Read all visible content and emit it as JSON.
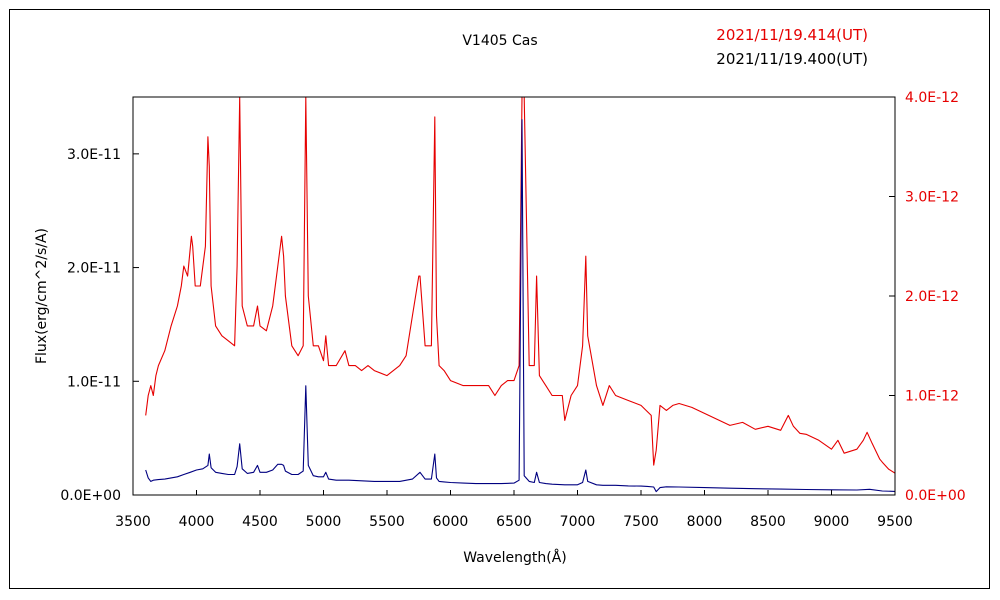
{
  "chart_data": {
    "type": "line",
    "title": "V1405 Cas",
    "legend": [
      {
        "label": "2021/11/19.414(UT)",
        "color": "#e60000"
      },
      {
        "label": "2021/11/19.400(UT)",
        "color": "#000000"
      }
    ],
    "xlabel": "Wavelength(Å)",
    "ylabel": "Flux(erg/cm^2/s/A)",
    "xlim": [
      3500,
      9500
    ],
    "xticks": [
      "3500",
      "4000",
      "4500",
      "5000",
      "5500",
      "6000",
      "6500",
      "7000",
      "7500",
      "8000",
      "8500",
      "9000",
      "9500"
    ],
    "y_left": {
      "lim": [
        0,
        3.5e-11
      ],
      "ticks": [
        0,
        1e-11,
        2e-11,
        3e-11
      ],
      "tick_labels": [
        "0.0E+00",
        "1.0E-11",
        "2.0E-11",
        "3.0E-11"
      ],
      "color": "#000000"
    },
    "y_right": {
      "lim": [
        0,
        4e-12
      ],
      "ticks": [
        0,
        1e-12,
        2e-12,
        3e-12,
        4e-12
      ],
      "tick_labels": [
        "0.0E+00",
        "1.0E-12",
        "2.0E-12",
        "3.0E-12",
        "4.0E-12"
      ],
      "color": "#e60000"
    },
    "series": [
      {
        "axis": "right",
        "color": "#e60000",
        "x": [
          3600,
          3620,
          3640,
          3660,
          3680,
          3700,
          3750,
          3800,
          3850,
          3880,
          3900,
          3930,
          3960,
          3970,
          3990,
          4030,
          4070,
          4090,
          4101,
          4115,
          4150,
          4200,
          4250,
          4300,
          4320,
          4340,
          4360,
          4400,
          4450,
          4480,
          4500,
          4550,
          4600,
          4640,
          4670,
          4686,
          4700,
          4750,
          4800,
          4840,
          4861,
          4880,
          4920,
          4960,
          5000,
          5018,
          5040,
          5100,
          5169,
          5200,
          5250,
          5300,
          5350,
          5400,
          5500,
          5600,
          5650,
          5700,
          5750,
          5760,
          5800,
          5850,
          5876,
          5890,
          5910,
          5950,
          6000,
          6100,
          6200,
          6300,
          6350,
          6400,
          6450,
          6500,
          6540,
          6563,
          6580,
          6620,
          6660,
          6678,
          6700,
          6750,
          6800,
          6880,
          6900,
          6950,
          7000,
          7040,
          7065,
          7080,
          7150,
          7200,
          7250,
          7300,
          7400,
          7500,
          7580,
          7600,
          7620,
          7650,
          7700,
          7750,
          7800,
          7900,
          8000,
          8100,
          8200,
          8300,
          8400,
          8500,
          8600,
          8660,
          8700,
          8750,
          8800,
          8900,
          9000,
          9050,
          9100,
          9200,
          9250,
          9280,
          9320,
          9380,
          9400,
          9450,
          9500
        ],
        "y": [
          8e-13,
          1e-12,
          1.1e-12,
          1e-12,
          1.2e-12,
          1.3e-12,
          1.45e-12,
          1.7e-12,
          1.9e-12,
          2.1e-12,
          2.3e-12,
          2.2e-12,
          2.6e-12,
          2.5e-12,
          2.1e-12,
          2.1e-12,
          2.5e-12,
          3.6e-12,
          3.3e-12,
          2.1e-12,
          1.7e-12,
          1.6e-12,
          1.55e-12,
          1.5e-12,
          2.3e-12,
          4e-12,
          1.9e-12,
          1.7e-12,
          1.7e-12,
          1.9e-12,
          1.7e-12,
          1.65e-12,
          1.9e-12,
          2.3e-12,
          2.6e-12,
          2.4e-12,
          2e-12,
          1.5e-12,
          1.4e-12,
          1.5e-12,
          4e-12,
          2e-12,
          1.5e-12,
          1.5e-12,
          1.35e-12,
          1.6e-12,
          1.3e-12,
          1.3e-12,
          1.45e-12,
          1.3e-12,
          1.3e-12,
          1.25e-12,
          1.3e-12,
          1.25e-12,
          1.2e-12,
          1.3e-12,
          1.4e-12,
          1.8e-12,
          2.2e-12,
          2.2e-12,
          1.5e-12,
          1.5e-12,
          3.8e-12,
          1.8e-12,
          1.3e-12,
          1.25e-12,
          1.15e-12,
          1.1e-12,
          1.1e-12,
          1.1e-12,
          1e-12,
          1.1e-12,
          1.15e-12,
          1.15e-12,
          1.3e-12,
          4e-12,
          4e-12,
          1.3e-12,
          1.3e-12,
          2.2e-12,
          1.2e-12,
          1.1e-12,
          1e-12,
          1e-12,
          7.5e-13,
          1e-12,
          1.1e-12,
          1.5e-12,
          2.4e-12,
          1.6e-12,
          1.1e-12,
          9e-13,
          1.1e-12,
          1e-12,
          9.5e-13,
          9e-13,
          8e-13,
          3e-13,
          4.5e-13,
          9e-13,
          8.5e-13,
          9e-13,
          9.2e-13,
          8.8e-13,
          8.2e-13,
          7.6e-13,
          7e-13,
          7.3e-13,
          6.6e-13,
          6.9e-13,
          6.5e-13,
          8e-13,
          6.9e-13,
          6.2e-13,
          6.1e-13,
          5.5e-13,
          4.6e-13,
          5.5e-13,
          4.2e-13,
          4.6e-13,
          5.5e-13,
          6.3e-13,
          5.2e-13,
          3.6e-13,
          3.3e-13,
          2.6e-13,
          2.2e-13
        ]
      },
      {
        "axis": "left",
        "color": "#000080",
        "x": [
          3600,
          3620,
          3640,
          3660,
          3700,
          3750,
          3800,
          3850,
          3900,
          3950,
          4000,
          4050,
          4090,
          4101,
          4115,
          4150,
          4200,
          4250,
          4300,
          4320,
          4340,
          4360,
          4400,
          4450,
          4480,
          4500,
          4550,
          4600,
          4640,
          4670,
          4686,
          4700,
          4750,
          4800,
          4840,
          4861,
          4880,
          4920,
          4960,
          5000,
          5018,
          5040,
          5100,
          5200,
          5300,
          5400,
          5500,
          5600,
          5700,
          5760,
          5800,
          5850,
          5876,
          5890,
          5910,
          5950,
          6000,
          6100,
          6200,
          6300,
          6400,
          6500,
          6540,
          6563,
          6580,
          6620,
          6660,
          6678,
          6700,
          6750,
          6800,
          6900,
          7000,
          7040,
          7065,
          7080,
          7150,
          7200,
          7300,
          7400,
          7500,
          7550,
          7600,
          7620,
          7650,
          7700,
          7800,
          8000,
          8200,
          8400,
          8600,
          8800,
          9000,
          9200,
          9300,
          9400,
          9500
        ],
        "y": [
          2.2e-12,
          1.5e-12,
          1.2e-12,
          1.3e-12,
          1.35e-12,
          1.4e-12,
          1.5e-12,
          1.6e-12,
          1.8e-12,
          2e-12,
          2.2e-12,
          2.3e-12,
          2.6e-12,
          3.6e-12,
          2.4e-12,
          2e-12,
          1.9e-12,
          1.8e-12,
          1.8e-12,
          2.5e-12,
          4.5e-12,
          2.3e-12,
          1.9e-12,
          2e-12,
          2.6e-12,
          2e-12,
          2e-12,
          2.2e-12,
          2.7e-12,
          2.7e-12,
          2.6e-12,
          2.1e-12,
          1.8e-12,
          1.8e-12,
          2.1e-12,
          9.6e-12,
          2.6e-12,
          1.7e-12,
          1.6e-12,
          1.6e-12,
          2e-12,
          1.4e-12,
          1.3e-12,
          1.3e-12,
          1.25e-12,
          1.2e-12,
          1.2e-12,
          1.2e-12,
          1.4e-12,
          2e-12,
          1.4e-12,
          1.4e-12,
          3.6e-12,
          1.5e-12,
          1.2e-12,
          1.15e-12,
          1.1e-12,
          1.05e-12,
          1e-12,
          1e-12,
          1e-12,
          1.05e-12,
          1.3e-12,
          3.3e-11,
          1.7e-12,
          1.2e-12,
          1.1e-12,
          2e-12,
          1.1e-12,
          1e-12,
          9.5e-13,
          9e-13,
          9e-13,
          1.1e-12,
          2.2e-12,
          1.2e-12,
          9e-13,
          8.5e-13,
          8.5e-13,
          8e-13,
          7.8e-13,
          7.6e-13,
          7e-13,
          3e-13,
          6.5e-13,
          7.2e-13,
          7e-13,
          6.5e-13,
          6e-13,
          5.5e-13,
          5.2e-13,
          4.8e-13,
          4.6e-13,
          4.4e-13,
          5e-13,
          3.5e-13,
          3.2e-13
        ]
      }
    ]
  }
}
